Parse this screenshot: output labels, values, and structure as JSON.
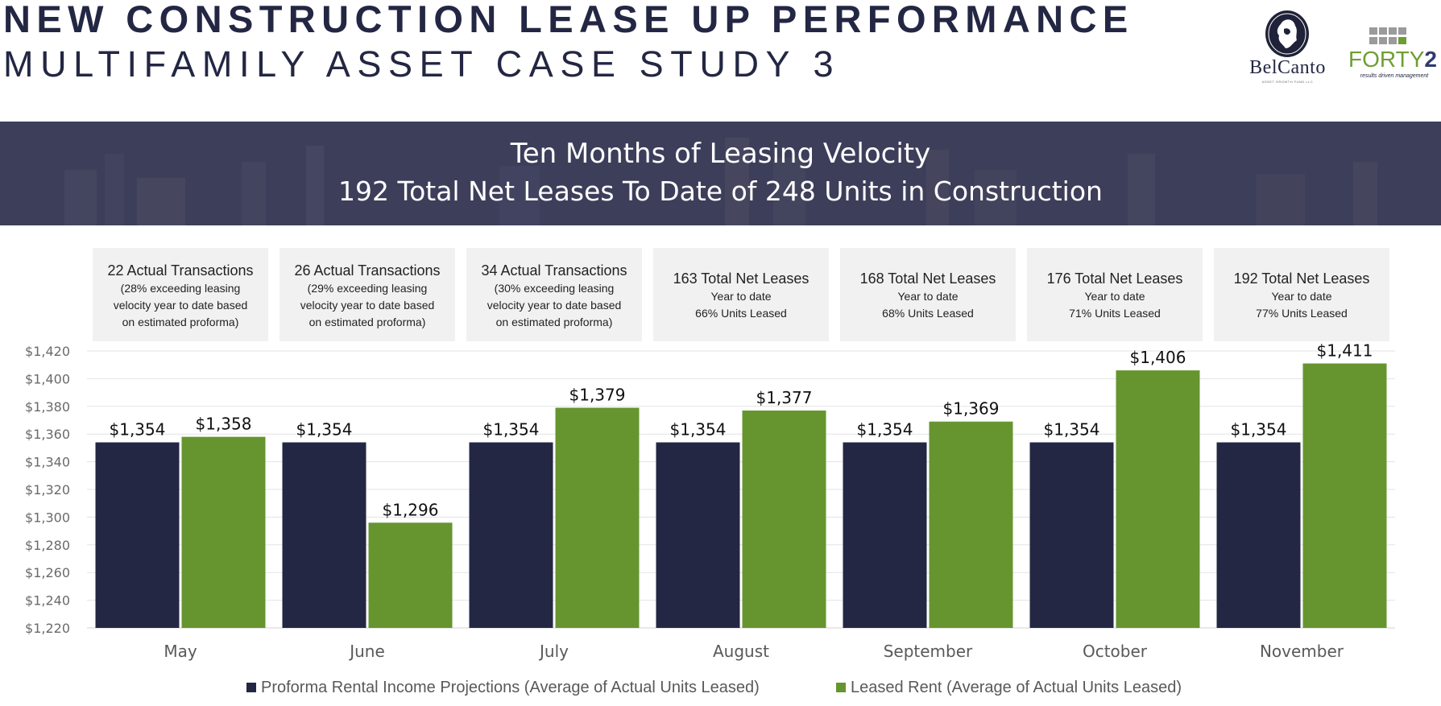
{
  "header": {
    "title_line1": "NEW CONSTRUCTION LEASE UP PERFORMANCE",
    "title_line2": "MULTIFAMILY ASSET CASE STUDY 3"
  },
  "logos": {
    "belcanto": {
      "name": "BelCanto",
      "tagline": "ASSET GROWTH FUND LLC"
    },
    "forty2": {
      "name_light": "FORTY",
      "name_bold": "2",
      "tagline": "results driven management"
    }
  },
  "banner": {
    "line1": "Ten Months of Leasing Velocity",
    "line2": "192 Total Net Leases To Date of 248 Units in Construction"
  },
  "info_boxes": [
    {
      "title": "22 Actual Transactions",
      "lines": [
        "(28% exceeding leasing",
        "velocity year to date based",
        "on estimated proforma)"
      ]
    },
    {
      "title": "26 Actual Transactions",
      "lines": [
        "(29% exceeding leasing",
        "velocity year to date based",
        "on estimated proforma)"
      ]
    },
    {
      "title": "34 Actual Transactions",
      "lines": [
        "(30% exceeding leasing",
        "velocity year to date based",
        "on estimated proforma)"
      ]
    },
    {
      "title": "163 Total Net Leases",
      "lines": [
        "Year to date",
        "66% Units Leased"
      ]
    },
    {
      "title": "168 Total Net Leases",
      "lines": [
        "Year to date",
        "68% Units Leased"
      ]
    },
    {
      "title": "176 Total Net Leases",
      "lines": [
        "Year to date",
        "71% Units Leased"
      ]
    },
    {
      "title": "192 Total Net Leases",
      "lines": [
        "Year to date",
        "77% Units Leased"
      ]
    }
  ],
  "colors": {
    "navy": "#232743",
    "green": "#66952f",
    "banner": "#3a3b57",
    "grid": "#e3e3e3",
    "axis_text": "#6a6a6a"
  },
  "chart_data": {
    "type": "bar",
    "categories": [
      "May",
      "June",
      "July",
      "August",
      "September",
      "October",
      "November"
    ],
    "series": [
      {
        "name": "Proforma Rental Income Projections (Average of Actual Units Leased)",
        "values": [
          1354,
          1354,
          1354,
          1354,
          1354,
          1354,
          1354
        ],
        "labels": [
          "$1,354",
          "$1,354",
          "$1,354",
          "$1,354",
          "$1,354",
          "$1,354",
          "$1,354"
        ],
        "color": "#232743"
      },
      {
        "name": "Leased Rent (Average of Actual Units Leased)",
        "values": [
          1358,
          1296,
          1379,
          1377,
          1369,
          1406,
          1411
        ],
        "labels": [
          "$1,358",
          "$1,296",
          "$1,379",
          "$1,377",
          "$1,369",
          "$1,406",
          "$1,411"
        ],
        "color": "#66952f"
      }
    ],
    "ylim": [
      1220,
      1420
    ],
    "yticks": [
      1220,
      1240,
      1260,
      1280,
      1300,
      1320,
      1340,
      1360,
      1380,
      1400,
      1420
    ],
    "ytick_labels": [
      "$1,220",
      "$1,240",
      "$1,260",
      "$1,280",
      "$1,300",
      "$1,320",
      "$1,340",
      "$1,360",
      "$1,380",
      "$1,400",
      "$1,420"
    ],
    "grid": true,
    "legend_position": "bottom"
  }
}
